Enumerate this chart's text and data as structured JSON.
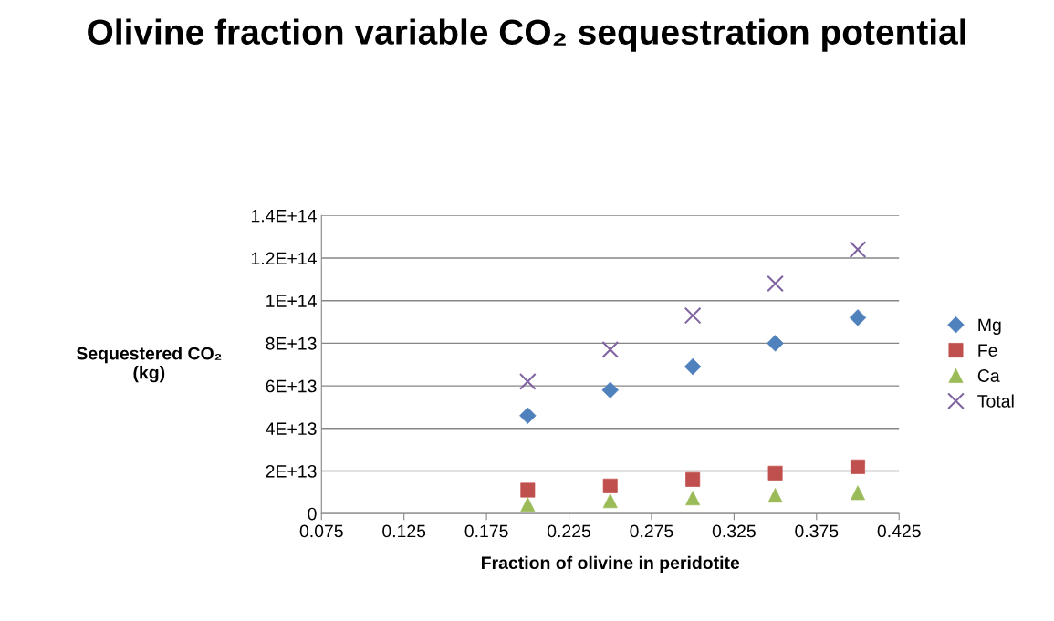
{
  "chart_data": {
    "type": "scatter",
    "title": "Olivine fraction variable CO₂ sequestration potential",
    "xlabel": "Fraction of olivine in peridotite",
    "ylabel": "Sequestered CO₂\n(kg)",
    "x": [
      0.2,
      0.25,
      0.3,
      0.35,
      0.4
    ],
    "series": [
      {
        "name": "Mg",
        "color": "#4f81bd",
        "marker": "diamond",
        "values": [
          46000000000000.0,
          58000000000000.0,
          69000000000000.0,
          80000000000000.0,
          92000000000000.0
        ]
      },
      {
        "name": "Fe",
        "color": "#c0504d",
        "marker": "square",
        "values": [
          11000000000000.0,
          13000000000000.0,
          16000000000000.0,
          19000000000000.0,
          22000000000000.0
        ]
      },
      {
        "name": "Ca",
        "color": "#9bbb59",
        "marker": "triangle",
        "values": [
          4300000000000.0,
          6000000000000.0,
          7300000000000.0,
          8600000000000.0,
          9800000000000.0
        ]
      },
      {
        "name": "Total",
        "color": "#8064a2",
        "marker": "cross",
        "values": [
          62000000000000.0,
          77000000000000.0,
          93000000000000.0,
          108000000000000.0,
          124000000000000.0
        ]
      }
    ],
    "xlim": [
      0.075,
      0.425
    ],
    "xticks": [
      0.075,
      0.125,
      0.175,
      0.225,
      0.275,
      0.325,
      0.375,
      0.425
    ],
    "ylim": [
      0,
      140000000000000.0
    ],
    "yticks": [
      0,
      {
        "value": 20000000000000.0,
        "label": "2E+13"
      },
      {
        "value": 40000000000000.0,
        "label": "4E+13"
      },
      {
        "value": 60000000000000.0,
        "label": "6E+13"
      },
      {
        "value": 80000000000000.0,
        "label": "8E+13"
      },
      {
        "value": 100000000000000.0,
        "label": "1E+14"
      },
      {
        "value": 120000000000000.0,
        "label": "1.2E+14"
      },
      {
        "value": 140000000000000.0,
        "label": "1.4E+14"
      }
    ],
    "grid": "y",
    "legend": "right"
  }
}
